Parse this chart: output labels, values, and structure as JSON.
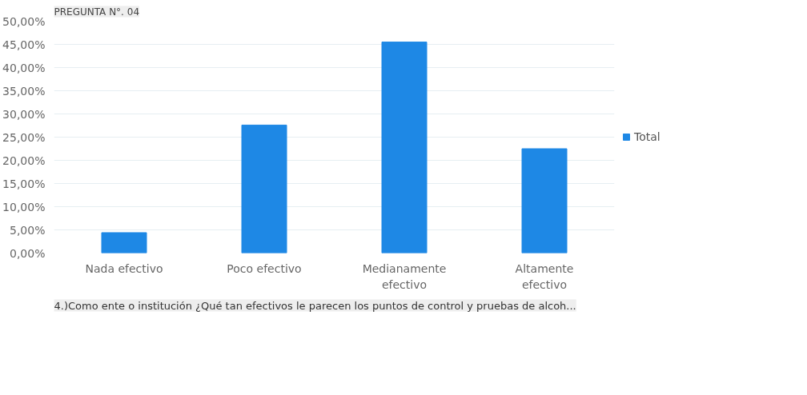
{
  "chart_data": {
    "type": "bar",
    "title": "PREGUNTA N°. 04",
    "categories": [
      "Nada efectivo",
      "Poco efectivo",
      "Medianamente efectivo",
      "Altamente efectivo"
    ],
    "series": [
      {
        "name": "Total",
        "color": "#1e88e5",
        "values": [
          4.4,
          27.6,
          45.5,
          22.5
        ]
      }
    ],
    "ylim": [
      0,
      50
    ],
    "yticks": [
      {
        "value": 0,
        "label": "0,00%"
      },
      {
        "value": 5,
        "label": "5,00%"
      },
      {
        "value": 10,
        "label": "10,00%"
      },
      {
        "value": 15,
        "label": "15,00%"
      },
      {
        "value": 20,
        "label": "20,00%"
      },
      {
        "value": 25,
        "label": "25,00%"
      },
      {
        "value": 30,
        "label": "30,00%"
      },
      {
        "value": 35,
        "label": "35,00%"
      },
      {
        "value": 40,
        "label": "40,00%"
      },
      {
        "value": 45,
        "label": "45,00%"
      },
      {
        "value": 50,
        "label": "50,00%"
      }
    ],
    "grid": "y",
    "legend": "right",
    "annotations": [
      "4.)Como ente o institución ¿Qué tan efectivos le parecen los puntos de control y pruebas de alcoh..."
    ]
  }
}
